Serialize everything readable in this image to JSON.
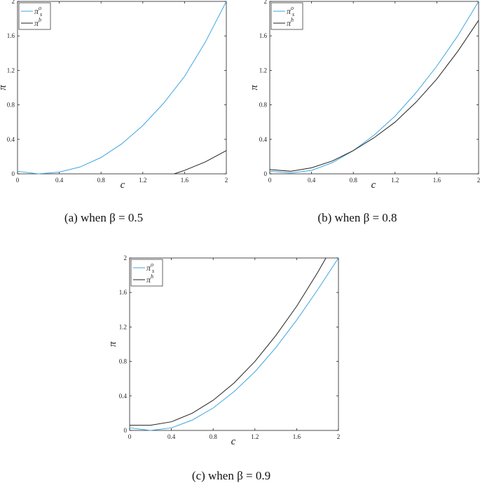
{
  "chart_data": [
    {
      "type": "line",
      "caption": "(a) when  β = 0.5",
      "xlabel": "c",
      "ylabel": "π",
      "xlim": [
        0,
        2
      ],
      "ylim": [
        0,
        2
      ],
      "xticks": [
        0,
        0.4,
        0.8,
        1.2,
        1.6,
        2
      ],
      "yticks": [
        0,
        0.4,
        0.8,
        1.2,
        1.6,
        2
      ],
      "legend": "upper left",
      "series": [
        {
          "name": {
            "base": "π",
            "sub": "s",
            "sup": "o"
          },
          "color": "#3ea6e0",
          "x": [
            0,
            0.2,
            0.4,
            0.6,
            0.8,
            1.0,
            1.2,
            1.4,
            1.6,
            1.8,
            2.0
          ],
          "values": [
            0.03,
            0.0,
            0.02,
            0.08,
            0.19,
            0.35,
            0.56,
            0.82,
            1.13,
            1.53,
            2.0
          ]
        },
        {
          "name": {
            "base": "π",
            "sup": "b"
          },
          "color": "#222222",
          "x": [
            1.5,
            1.6,
            1.8,
            2.0
          ],
          "values": [
            0,
            0.04,
            0.14,
            0.27
          ]
        }
      ]
    },
    {
      "type": "line",
      "caption": "(b) when  β = 0.8",
      "xlabel": "c",
      "ylabel": "π",
      "xlim": [
        0,
        2
      ],
      "ylim": [
        0,
        2
      ],
      "xticks": [
        0,
        0.4,
        0.8,
        1.2,
        1.6,
        2
      ],
      "yticks": [
        0,
        0.4,
        0.8,
        1.2,
        1.6,
        2
      ],
      "legend": "upper left",
      "series": [
        {
          "name": {
            "base": "π",
            "sub": "s",
            "sup": "o"
          },
          "color": "#3ea6e0",
          "x": [
            0,
            0.2,
            0.4,
            0.6,
            0.8,
            1.0,
            1.2,
            1.4,
            1.6,
            1.8,
            2.0
          ],
          "values": [
            0.03,
            0.01,
            0.04,
            0.13,
            0.27,
            0.45,
            0.67,
            0.94,
            1.25,
            1.6,
            2.0
          ]
        },
        {
          "name": {
            "base": "π",
            "sup": "h"
          },
          "color": "#222222",
          "x": [
            0,
            0.2,
            0.4,
            0.6,
            0.8,
            1.0,
            1.2,
            1.4,
            1.6,
            1.8,
            2.0
          ],
          "values": [
            0.05,
            0.03,
            0.07,
            0.15,
            0.27,
            0.42,
            0.6,
            0.83,
            1.1,
            1.42,
            1.78
          ]
        }
      ]
    },
    {
      "type": "line",
      "caption": "(c) when  β = 0.9",
      "xlabel": "c",
      "ylabel": "π",
      "xlim": [
        0,
        2
      ],
      "ylim": [
        0,
        2
      ],
      "xticks": [
        0,
        0.4,
        0.8,
        1.2,
        1.6,
        2
      ],
      "yticks": [
        0,
        0.4,
        0.8,
        1.2,
        1.6,
        2
      ],
      "legend": "upper left",
      "series": [
        {
          "name": {
            "base": "π",
            "sub": "s",
            "sup": "o"
          },
          "color": "#3ea6e0",
          "x": [
            0,
            0.2,
            0.4,
            0.6,
            0.8,
            1.0,
            1.2,
            1.4,
            1.6,
            1.8,
            2.0
          ],
          "values": [
            0.03,
            0.0,
            0.03,
            0.12,
            0.26,
            0.45,
            0.68,
            0.96,
            1.28,
            1.63,
            2.0
          ]
        },
        {
          "name": {
            "base": "π",
            "sup": "h"
          },
          "color": "#222222",
          "x": [
            0,
            0.2,
            0.4,
            0.6,
            0.8,
            1.0,
            1.2,
            1.4,
            1.6,
            1.8,
            1.88
          ],
          "values": [
            0.06,
            0.06,
            0.1,
            0.2,
            0.35,
            0.55,
            0.8,
            1.1,
            1.44,
            1.83,
            2.0
          ]
        }
      ]
    }
  ]
}
